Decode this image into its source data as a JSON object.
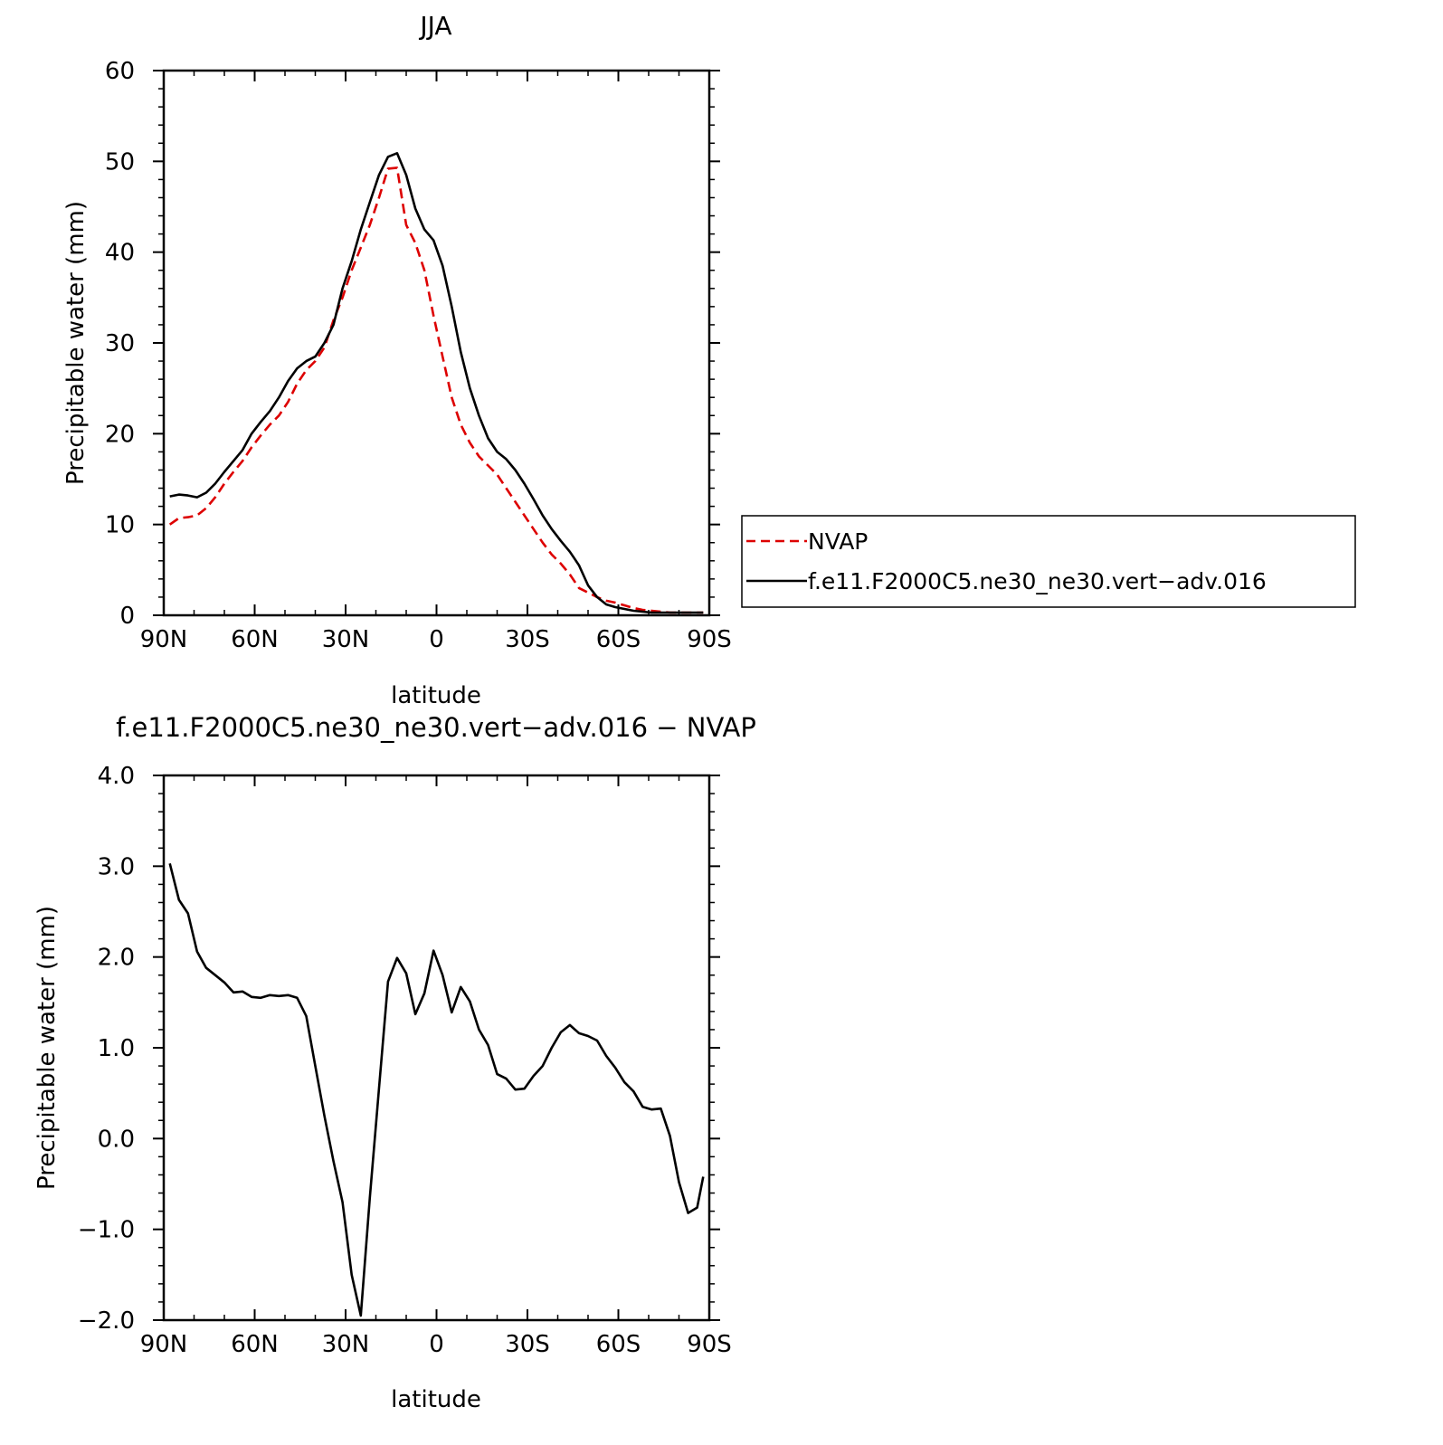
{
  "chart_data": [
    {
      "type": "line",
      "title": "JJA",
      "xlabel": "latitude",
      "ylabel": "Precipitable water (mm)",
      "xlim": [
        -90,
        90
      ],
      "ylim": [
        0,
        60
      ],
      "x_ticks": [
        -90,
        -60,
        -30,
        0,
        30,
        60,
        90
      ],
      "x_tick_labels": [
        "90N",
        "60N",
        "30N",
        "0",
        "30S",
        "60S",
        "90S"
      ],
      "y_ticks": [
        0,
        10,
        20,
        30,
        40,
        50,
        60
      ],
      "y_tick_labels": [
        "0",
        "10",
        "20",
        "30",
        "40",
        "50",
        "60"
      ],
      "legend": "right",
      "x": [
        -88,
        -85,
        -82,
        -79,
        -76,
        -73,
        -70,
        -67,
        -64,
        -61,
        -58,
        -55,
        -52,
        -49,
        -46,
        -43,
        -40,
        -37,
        -34,
        -31,
        -28,
        -25,
        -22,
        -19,
        -16,
        -13,
        -10,
        -7,
        -4,
        -1,
        2,
        5,
        8,
        11,
        14,
        17,
        20,
        23,
        26,
        29,
        32,
        35,
        38,
        41,
        44,
        47,
        50,
        53,
        56,
        59,
        62,
        65,
        68,
        71,
        74,
        77,
        80,
        83,
        86,
        88
      ],
      "series": [
        {
          "name": "NVAP",
          "color": "#dd0000",
          "dash": true,
          "values": [
            10.0,
            10.7,
            10.8,
            11.0,
            11.8,
            13.0,
            14.5,
            15.8,
            17.0,
            18.5,
            19.8,
            21.0,
            22.0,
            23.5,
            25.5,
            27.0,
            28.0,
            29.5,
            32.5,
            35.0,
            38.0,
            40.5,
            43.0,
            46.0,
            49.2,
            49.3,
            43.0,
            41.0,
            38.0,
            33.0,
            28.5,
            24.0,
            21.0,
            19.0,
            17.5,
            16.5,
            15.5,
            14.0,
            12.5,
            11.0,
            9.5,
            8.0,
            6.7,
            5.7,
            4.5,
            3.0,
            2.5,
            2.0,
            1.6,
            1.4,
            1.1,
            0.8,
            0.6,
            0.5,
            0.4,
            0.3,
            0.3,
            0.3,
            0.3,
            0.3
          ],
          "note_removed": false
        },
        {
          "name": "f.e11.F2000C5.ne30_ne30.vert−adv.016",
          "color": "#000000",
          "dash": false,
          "values": [
            13.1,
            13.3,
            13.2,
            13.0,
            13.5,
            14.5,
            15.8,
            17.0,
            18.2,
            20.0,
            21.3,
            22.5,
            24.0,
            25.8,
            27.2,
            28.0,
            28.5,
            30.0,
            32.0,
            36.0,
            39.0,
            42.5,
            45.5,
            48.5,
            50.5,
            50.9,
            48.5,
            44.8,
            42.5,
            41.3,
            38.5,
            34.0,
            29.0,
            25.0,
            22.0,
            19.5,
            18.0,
            17.2,
            16.0,
            14.5,
            12.8,
            11.0,
            9.5,
            8.2,
            7.0,
            5.5,
            3.3,
            2.0,
            1.2,
            0.9,
            0.7,
            0.5,
            0.4,
            0.3,
            0.3,
            0.3,
            0.3,
            0.3,
            0.3,
            0.3
          ]
        }
      ]
    },
    {
      "type": "line",
      "title": "f.e11.F2000C5.ne30_ne30.vert−adv.016 − NVAP",
      "xlabel": "latitude",
      "ylabel": "Precipitable water (mm)",
      "xlim": [
        -90,
        90
      ],
      "ylim": [
        -2.0,
        4.0
      ],
      "x_ticks": [
        -90,
        -60,
        -30,
        0,
        30,
        60,
        90
      ],
      "x_tick_labels": [
        "90N",
        "60N",
        "30N",
        "0",
        "30S",
        "60S",
        "90S"
      ],
      "y_ticks": [
        -2.0,
        -1.0,
        0.0,
        1.0,
        2.0,
        3.0,
        4.0
      ],
      "y_tick_labels": [
        "−2.0",
        "−1.0",
        "0.0",
        "1.0",
        "2.0",
        "3.0",
        "4.0"
      ],
      "x": [
        -88,
        -85,
        -82,
        -79,
        -76,
        -73,
        -70,
        -67,
        -64,
        -61,
        -58,
        -55,
        -52,
        -49,
        -46,
        -43,
        -40,
        -37,
        -34,
        -31,
        -28,
        -25,
        -22,
        -19,
        -16,
        -13,
        -10,
        -7,
        -4,
        -1,
        2,
        5,
        8,
        11,
        14,
        17,
        20,
        23,
        26,
        29,
        32,
        35,
        38,
        41,
        44,
        47,
        50,
        53,
        56,
        59,
        62,
        65,
        68,
        71,
        74,
        77,
        80,
        83,
        86,
        88
      ],
      "series": [
        {
          "color": "#000000",
          "values": [
            3.03,
            2.63,
            2.48,
            2.06,
            1.88,
            1.8,
            1.72,
            1.61,
            1.62,
            1.56,
            1.55,
            1.58,
            1.57,
            1.58,
            1.55,
            1.35,
            0.8,
            0.25,
            -0.25,
            -0.7,
            -1.5,
            -1.95,
            -0.65,
            0.55,
            1.73,
            1.99,
            1.82,
            1.37,
            1.6,
            2.07,
            1.8,
            1.39,
            1.67,
            1.51,
            1.2,
            1.03,
            0.71,
            0.66,
            0.54,
            0.55,
            0.69,
            0.8,
            1.0,
            1.17,
            1.25,
            1.16,
            1.13,
            1.08,
            0.91,
            0.78,
            0.62,
            0.52,
            0.35,
            0.32,
            0.33,
            0.03,
            -0.48,
            -0.82,
            -0.76,
            -0.42
          ]
        }
      ]
    }
  ]
}
